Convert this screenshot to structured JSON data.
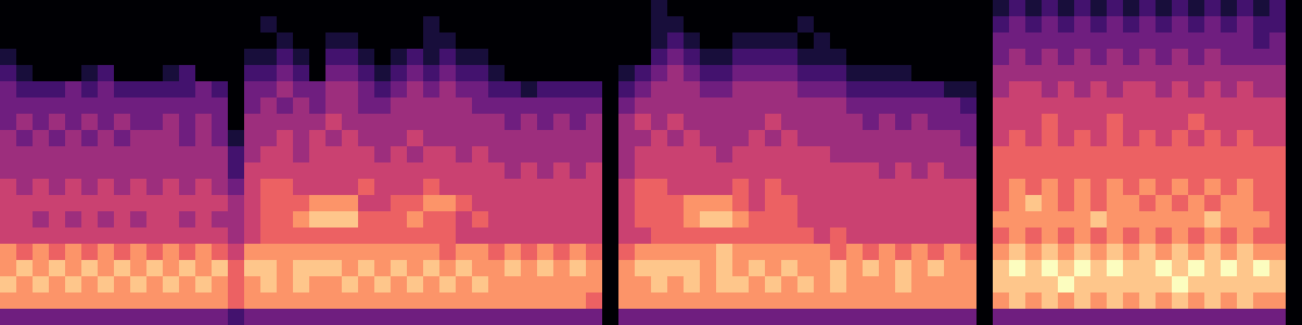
{
  "chart_data": {
    "type": "heatmap",
    "color": "magma",
    "tick_labels": false,
    "color_range": [
      0,
      9
    ],
    "cells": [
      [
        0,
        0,
        0,
        0,
        0,
        0,
        0,
        0,
        0,
        0,
        0,
        0,
        0,
        0,
        0,
        0,
        0,
        0,
        0,
        0,
        0,
        0,
        0,
        0,
        0,
        0,
        0,
        0,
        0,
        0,
        0,
        0,
        0,
        0,
        0,
        0,
        0,
        0,
        0,
        0,
        1,
        0,
        0,
        0,
        0,
        0,
        0,
        0,
        0,
        0,
        0,
        0,
        0,
        0,
        0,
        0,
        0,
        0,
        0,
        0,
        0,
        1,
        2,
        1,
        2,
        1,
        2,
        1,
        2,
        1,
        2,
        1,
        2,
        1,
        2,
        1,
        2,
        1,
        2,
        0
      ],
      [
        0,
        0,
        0,
        0,
        0,
        0,
        0,
        0,
        0,
        0,
        0,
        0,
        0,
        0,
        0,
        0,
        1,
        0,
        0,
        0,
        0,
        0,
        0,
        0,
        0,
        0,
        1,
        0,
        0,
        0,
        0,
        0,
        0,
        0,
        0,
        0,
        0,
        0,
        0,
        0,
        1,
        1,
        0,
        0,
        0,
        0,
        0,
        0,
        0,
        1,
        0,
        0,
        0,
        0,
        0,
        0,
        0,
        0,
        0,
        0,
        0,
        2,
        3,
        2,
        3,
        2,
        3,
        2,
        3,
        2,
        3,
        2,
        3,
        2,
        3,
        2,
        3,
        2,
        2,
        0
      ],
      [
        0,
        0,
        0,
        0,
        0,
        0,
        0,
        0,
        0,
        0,
        0,
        0,
        0,
        0,
        0,
        0,
        0,
        1,
        0,
        0,
        1,
        1,
        0,
        0,
        0,
        0,
        1,
        1,
        0,
        0,
        0,
        0,
        0,
        0,
        0,
        0,
        0,
        0,
        0,
        0,
        1,
        2,
        1,
        0,
        0,
        1,
        1,
        1,
        1,
        0,
        1,
        0,
        0,
        0,
        0,
        0,
        0,
        0,
        0,
        0,
        0,
        3,
        3,
        3,
        3,
        3,
        3,
        3,
        3,
        3,
        3,
        3,
        3,
        3,
        3,
        3,
        3,
        2,
        3,
        0
      ],
      [
        1,
        0,
        0,
        0,
        0,
        0,
        0,
        0,
        0,
        0,
        0,
        0,
        0,
        0,
        0,
        1,
        1,
        2,
        1,
        0,
        2,
        2,
        1,
        0,
        1,
        2,
        1,
        2,
        1,
        1,
        0,
        0,
        0,
        0,
        0,
        0,
        0,
        0,
        0,
        0,
        2,
        3,
        2,
        1,
        1,
        2,
        2,
        2,
        2,
        1,
        1,
        1,
        0,
        0,
        0,
        0,
        0,
        0,
        0,
        0,
        0,
        3,
        4,
        3,
        4,
        3,
        4,
        3,
        4,
        3,
        4,
        3,
        4,
        3,
        4,
        3,
        3,
        3,
        3,
        0
      ],
      [
        2,
        1,
        0,
        0,
        0,
        1,
        2,
        0,
        0,
        0,
        1,
        2,
        0,
        0,
        0,
        2,
        2,
        3,
        2,
        0,
        3,
        3,
        2,
        1,
        2,
        3,
        2,
        3,
        2,
        2,
        1,
        0,
        0,
        0,
        0,
        0,
        0,
        0,
        1,
        2,
        3,
        4,
        3,
        2,
        2,
        3,
        3,
        3,
        3,
        2,
        2,
        2,
        1,
        1,
        1,
        1,
        0,
        0,
        0,
        0,
        0,
        4,
        4,
        4,
        4,
        4,
        4,
        4,
        4,
        4,
        4,
        4,
        4,
        4,
        4,
        4,
        4,
        4,
        4,
        0
      ],
      [
        3,
        2,
        2,
        2,
        3,
        2,
        3,
        2,
        2,
        2,
        2,
        2,
        3,
        2,
        0,
        3,
        3,
        4,
        3,
        3,
        4,
        4,
        3,
        2,
        3,
        4,
        3,
        4,
        3,
        3,
        2,
        2,
        1,
        2,
        2,
        2,
        2,
        0,
        2,
        3,
        4,
        4,
        4,
        3,
        3,
        4,
        4,
        4,
        4,
        3,
        3,
        3,
        2,
        2,
        2,
        2,
        2,
        2,
        1,
        1,
        0,
        4,
        5,
        5,
        4,
        5,
        4,
        5,
        4,
        5,
        5,
        4,
        5,
        4,
        5,
        4,
        5,
        4,
        4,
        0
      ],
      [
        3,
        3,
        3,
        3,
        3,
        3,
        3,
        3,
        3,
        3,
        3,
        3,
        3,
        3,
        0,
        3,
        4,
        3,
        4,
        3,
        4,
        4,
        3,
        3,
        4,
        4,
        4,
        4,
        4,
        3,
        3,
        3,
        3,
        3,
        3,
        3,
        3,
        0,
        3,
        4,
        4,
        4,
        4,
        4,
        4,
        4,
        4,
        4,
        4,
        4,
        4,
        4,
        3,
        3,
        3,
        3,
        3,
        3,
        3,
        2,
        0,
        5,
        5,
        5,
        5,
        5,
        5,
        5,
        5,
        5,
        5,
        5,
        5,
        5,
        5,
        5,
        5,
        5,
        5,
        0
      ],
      [
        3,
        4,
        3,
        4,
        3,
        4,
        3,
        4,
        3,
        3,
        4,
        3,
        4,
        3,
        0,
        4,
        4,
        4,
        4,
        4,
        5,
        4,
        4,
        4,
        4,
        4,
        4,
        4,
        4,
        4,
        4,
        3,
        4,
        3,
        4,
        3,
        4,
        0,
        4,
        5,
        4,
        5,
        4,
        4,
        4,
        4,
        4,
        5,
        4,
        4,
        4,
        4,
        4,
        3,
        4,
        3,
        4,
        3,
        3,
        3,
        0,
        5,
        5,
        5,
        6,
        5,
        5,
        5,
        6,
        5,
        5,
        5,
        5,
        6,
        5,
        5,
        5,
        5,
        5,
        0
      ],
      [
        4,
        3,
        4,
        3,
        4,
        3,
        4,
        3,
        4,
        4,
        4,
        3,
        4,
        3,
        1,
        4,
        4,
        5,
        4,
        5,
        4,
        5,
        4,
        4,
        4,
        5,
        4,
        4,
        4,
        4,
        4,
        4,
        4,
        4,
        4,
        4,
        4,
        0,
        4,
        4,
        5,
        4,
        5,
        4,
        4,
        4,
        5,
        4,
        5,
        4,
        4,
        4,
        4,
        4,
        4,
        4,
        4,
        4,
        4,
        3,
        0,
        5,
        6,
        5,
        6,
        5,
        6,
        5,
        6,
        5,
        6,
        5,
        6,
        5,
        6,
        5,
        6,
        5,
        5,
        0
      ],
      [
        4,
        4,
        4,
        4,
        4,
        4,
        4,
        4,
        4,
        4,
        4,
        4,
        4,
        4,
        2,
        4,
        5,
        5,
        4,
        5,
        5,
        5,
        5,
        4,
        5,
        4,
        5,
        5,
        4,
        5,
        4,
        4,
        4,
        4,
        4,
        4,
        4,
        0,
        4,
        5,
        5,
        5,
        5,
        5,
        4,
        5,
        5,
        5,
        5,
        5,
        5,
        4,
        4,
        4,
        4,
        4,
        4,
        4,
        4,
        4,
        0,
        6,
        6,
        6,
        6,
        6,
        6,
        6,
        6,
        6,
        6,
        6,
        6,
        6,
        6,
        6,
        6,
        6,
        6,
        0
      ],
      [
        4,
        4,
        4,
        4,
        4,
        4,
        4,
        4,
        4,
        4,
        4,
        4,
        4,
        4,
        2,
        5,
        5,
        5,
        5,
        5,
        5,
        5,
        5,
        5,
        5,
        5,
        5,
        5,
        5,
        5,
        5,
        4,
        5,
        4,
        5,
        4,
        5,
        0,
        4,
        5,
        5,
        5,
        5,
        5,
        5,
        5,
        5,
        5,
        5,
        5,
        5,
        5,
        5,
        5,
        4,
        5,
        4,
        5,
        4,
        4,
        0,
        6,
        6,
        6,
        6,
        6,
        6,
        6,
        6,
        6,
        6,
        6,
        6,
        6,
        6,
        6,
        6,
        6,
        6,
        0
      ],
      [
        5,
        4,
        5,
        4,
        5,
        4,
        5,
        4,
        5,
        4,
        5,
        4,
        5,
        4,
        3,
        5,
        6,
        6,
        5,
        5,
        5,
        5,
        6,
        5,
        5,
        5,
        6,
        5,
        5,
        5,
        5,
        5,
        5,
        5,
        5,
        5,
        5,
        0,
        5,
        6,
        6,
        5,
        5,
        5,
        5,
        6,
        5,
        6,
        5,
        5,
        5,
        5,
        5,
        5,
        5,
        5,
        5,
        5,
        5,
        5,
        0,
        6,
        7,
        6,
        7,
        6,
        7,
        6,
        7,
        6,
        7,
        6,
        7,
        6,
        7,
        6,
        7,
        6,
        6,
        0
      ],
      [
        5,
        5,
        5,
        5,
        5,
        5,
        5,
        5,
        5,
        5,
        5,
        5,
        5,
        5,
        4,
        5,
        6,
        6,
        6,
        7,
        7,
        7,
        5,
        5,
        6,
        6,
        7,
        7,
        6,
        5,
        5,
        5,
        5,
        5,
        5,
        5,
        5,
        0,
        5,
        6,
        6,
        6,
        7,
        7,
        7,
        6,
        5,
        6,
        6,
        5,
        5,
        5,
        5,
        5,
        5,
        5,
        5,
        5,
        5,
        5,
        0,
        6,
        7,
        8,
        7,
        6,
        7,
        6,
        7,
        7,
        6,
        7,
        6,
        7,
        6,
        7,
        7,
        6,
        6,
        0
      ],
      [
        5,
        5,
        4,
        5,
        4,
        5,
        4,
        5,
        4,
        5,
        5,
        4,
        5,
        4,
        4,
        5,
        6,
        6,
        7,
        8,
        8,
        8,
        6,
        6,
        6,
        7,
        6,
        6,
        5,
        6,
        5,
        5,
        5,
        5,
        5,
        5,
        5,
        0,
        5,
        6,
        6,
        6,
        7,
        8,
        8,
        7,
        6,
        6,
        6,
        5,
        5,
        5,
        5,
        5,
        5,
        5,
        5,
        5,
        5,
        5,
        0,
        7,
        7,
        7,
        7,
        7,
        7,
        8,
        7,
        7,
        7,
        7,
        7,
        7,
        8,
        7,
        7,
        7,
        6,
        0
      ],
      [
        5,
        5,
        5,
        5,
        5,
        5,
        5,
        5,
        5,
        5,
        5,
        5,
        5,
        5,
        4,
        5,
        6,
        6,
        6,
        6,
        6,
        6,
        6,
        6,
        6,
        6,
        6,
        6,
        5,
        5,
        5,
        5,
        5,
        5,
        5,
        5,
        5,
        0,
        5,
        5,
        6,
        6,
        6,
        6,
        6,
        6,
        6,
        6,
        6,
        6,
        5,
        6,
        5,
        5,
        5,
        5,
        5,
        5,
        5,
        5,
        0,
        6,
        7,
        6,
        7,
        6,
        7,
        6,
        7,
        6,
        7,
        6,
        7,
        6,
        7,
        6,
        7,
        6,
        6,
        0
      ],
      [
        7,
        6,
        7,
        6,
        7,
        6,
        7,
        6,
        7,
        6,
        7,
        6,
        7,
        6,
        5,
        7,
        7,
        7,
        7,
        7,
        7,
        7,
        7,
        7,
        7,
        7,
        7,
        6,
        7,
        7,
        6,
        7,
        6,
        7,
        6,
        7,
        6,
        0,
        6,
        7,
        7,
        7,
        7,
        7,
        8,
        7,
        7,
        7,
        7,
        7,
        7,
        6,
        7,
        6,
        7,
        6,
        7,
        6,
        7,
        6,
        0,
        7,
        8,
        7,
        8,
        7,
        8,
        7,
        8,
        7,
        8,
        7,
        8,
        7,
        8,
        7,
        8,
        7,
        7,
        0
      ],
      [
        7,
        8,
        7,
        8,
        7,
        8,
        7,
        8,
        7,
        8,
        7,
        8,
        7,
        8,
        6,
        8,
        8,
        7,
        8,
        8,
        8,
        7,
        8,
        7,
        8,
        7,
        8,
        7,
        8,
        7,
        7,
        8,
        7,
        8,
        7,
        8,
        7,
        0,
        7,
        8,
        8,
        8,
        8,
        7,
        8,
        7,
        8,
        7,
        8,
        7,
        7,
        8,
        7,
        8,
        7,
        8,
        7,
        8,
        7,
        7,
        0,
        8,
        9,
        8,
        9,
        8,
        9,
        8,
        9,
        8,
        8,
        9,
        8,
        9,
        8,
        9,
        8,
        9,
        8,
        0
      ],
      [
        8,
        7,
        8,
        7,
        8,
        7,
        8,
        7,
        8,
        7,
        8,
        7,
        8,
        7,
        6,
        7,
        8,
        7,
        8,
        7,
        7,
        8,
        7,
        8,
        7,
        8,
        7,
        8,
        7,
        8,
        7,
        7,
        7,
        7,
        7,
        7,
        7,
        0,
        7,
        7,
        8,
        7,
        8,
        7,
        8,
        8,
        7,
        8,
        7,
        8,
        7,
        8,
        7,
        7,
        7,
        8,
        7,
        7,
        7,
        7,
        0,
        8,
        8,
        8,
        8,
        9,
        8,
        8,
        8,
        8,
        8,
        8,
        9,
        8,
        8,
        8,
        8,
        8,
        8,
        0
      ],
      [
        7,
        7,
        7,
        7,
        7,
        7,
        7,
        7,
        7,
        7,
        7,
        7,
        7,
        7,
        6,
        7,
        7,
        7,
        7,
        7,
        7,
        7,
        7,
        7,
        7,
        7,
        7,
        7,
        7,
        7,
        7,
        7,
        7,
        7,
        7,
        7,
        6,
        0,
        7,
        7,
        7,
        7,
        7,
        7,
        7,
        7,
        7,
        7,
        7,
        7,
        7,
        7,
        7,
        7,
        7,
        7,
        7,
        7,
        7,
        7,
        0,
        7,
        8,
        7,
        8,
        7,
        8,
        7,
        8,
        7,
        8,
        7,
        8,
        7,
        8,
        7,
        8,
        7,
        7,
        0
      ],
      [
        3,
        3,
        3,
        3,
        3,
        3,
        3,
        3,
        3,
        3,
        3,
        3,
        3,
        3,
        2,
        3,
        3,
        3,
        3,
        3,
        3,
        3,
        3,
        3,
        3,
        3,
        3,
        3,
        3,
        3,
        3,
        3,
        3,
        3,
        3,
        3,
        3,
        0,
        3,
        3,
        3,
        3,
        3,
        3,
        3,
        3,
        3,
        3,
        3,
        3,
        3,
        3,
        3,
        3,
        3,
        3,
        3,
        3,
        3,
        3,
        0,
        3,
        3,
        3,
        3,
        3,
        3,
        3,
        3,
        3,
        3,
        3,
        3,
        3,
        3,
        3,
        3,
        3,
        3,
        0
      ]
    ]
  }
}
